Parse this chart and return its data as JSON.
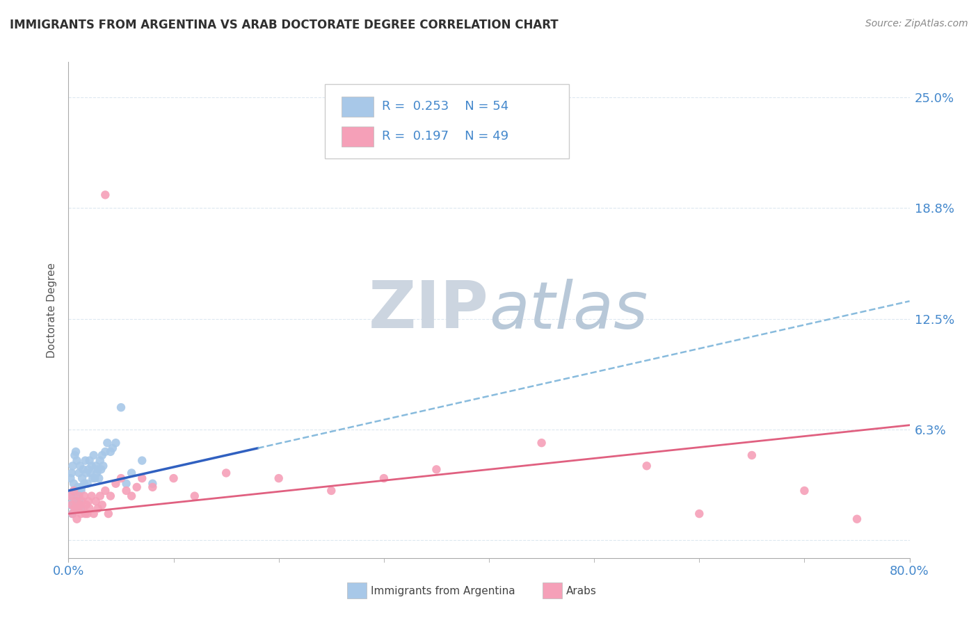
{
  "title": "IMMIGRANTS FROM ARGENTINA VS ARAB DOCTORATE DEGREE CORRELATION CHART",
  "source": "Source: ZipAtlas.com",
  "xlim": [
    0.0,
    80.0
  ],
  "ylim": [
    -1.0,
    27.0
  ],
  "ytick_vals": [
    0.0,
    6.25,
    12.5,
    18.75,
    25.0
  ],
  "ytick_labels": [
    "",
    "6.3%",
    "12.5%",
    "18.8%",
    "25.0%"
  ],
  "xtick_vals": [
    0.0,
    80.0
  ],
  "xtick_labels": [
    "0.0%",
    "80.0%"
  ],
  "ylabel": "Doctorate Degree",
  "legend1_label": "Immigrants from Argentina",
  "legend2_label": "Arabs",
  "R1": 0.253,
  "N1": 54,
  "R2": 0.197,
  "N2": 49,
  "color1": "#a8c8e8",
  "color2": "#f5a0b8",
  "trendline1_solid_color": "#3060c0",
  "trendline1_dash_color": "#88bbdd",
  "trendline2_color": "#e06080",
  "text_blue": "#4488cc",
  "watermark_color": "#ccd8e8",
  "background_color": "#ffffff",
  "grid_color": "#dde8f0",
  "title_color": "#303030",
  "scatter1_x": [
    0.2,
    0.3,
    0.4,
    0.5,
    0.6,
    0.7,
    0.8,
    0.9,
    1.0,
    1.1,
    1.2,
    1.3,
    1.4,
    1.5,
    1.6,
    1.7,
    1.8,
    1.9,
    2.0,
    2.1,
    2.2,
    2.3,
    2.4,
    2.5,
    2.6,
    2.7,
    2.8,
    2.9,
    3.0,
    3.1,
    3.2,
    3.3,
    3.5,
    3.7,
    4.0,
    4.2,
    4.5,
    5.0,
    5.5,
    6.0,
    7.0,
    8.0,
    0.15,
    0.25,
    0.35,
    0.45,
    0.55,
    0.65,
    0.75,
    0.85,
    0.95,
    1.05,
    1.15,
    1.25
  ],
  "scatter1_y": [
    3.5,
    3.8,
    4.2,
    3.2,
    4.8,
    5.0,
    4.5,
    3.0,
    3.8,
    4.2,
    2.8,
    3.5,
    4.0,
    3.2,
    4.5,
    3.8,
    3.2,
    4.0,
    4.5,
    3.8,
    4.2,
    3.5,
    4.8,
    3.5,
    4.2,
    3.8,
    4.0,
    3.5,
    4.5,
    4.0,
    4.8,
    4.2,
    5.0,
    5.5,
    5.0,
    5.2,
    5.5,
    7.5,
    3.2,
    3.8,
    4.5,
    3.2,
    2.0,
    2.5,
    1.5,
    2.2,
    2.8,
    2.0,
    1.8,
    2.5,
    2.8,
    2.2,
    1.8,
    3.0
  ],
  "scatter2_x": [
    0.2,
    0.3,
    0.4,
    0.5,
    0.6,
    0.7,
    0.8,
    0.9,
    1.0,
    1.1,
    1.2,
    1.3,
    1.4,
    1.5,
    1.6,
    1.7,
    1.8,
    1.9,
    2.0,
    2.2,
    2.4,
    2.6,
    2.8,
    3.0,
    3.2,
    3.5,
    3.8,
    4.0,
    4.5,
    5.0,
    5.5,
    6.0,
    6.5,
    7.0,
    8.0,
    10.0,
    12.0,
    15.0,
    20.0,
    25.0,
    30.0,
    35.0,
    45.0,
    55.0,
    60.0,
    65.0,
    70.0,
    75.0,
    3.5
  ],
  "scatter2_y": [
    2.5,
    2.0,
    1.5,
    2.8,
    1.8,
    2.2,
    1.2,
    1.8,
    2.5,
    2.0,
    1.5,
    2.2,
    1.8,
    2.5,
    1.5,
    2.0,
    1.5,
    2.2,
    1.8,
    2.5,
    1.5,
    2.2,
    1.8,
    2.5,
    2.0,
    2.8,
    1.5,
    2.5,
    3.2,
    3.5,
    2.8,
    2.5,
    3.0,
    3.5,
    3.0,
    3.5,
    2.5,
    3.8,
    3.5,
    2.8,
    3.5,
    4.0,
    5.5,
    4.2,
    1.5,
    4.8,
    2.8,
    1.2,
    19.5
  ],
  "trendline1_x0": 0.0,
  "trendline1_y0": 2.8,
  "trendline1_x_solid_end": 18.0,
  "trendline1_y_solid_end": 5.2,
  "trendline1_x1": 80.0,
  "trendline1_y1": 13.5,
  "trendline2_x0": 0.0,
  "trendline2_y0": 1.5,
  "trendline2_x1": 80.0,
  "trendline2_y1": 6.5
}
